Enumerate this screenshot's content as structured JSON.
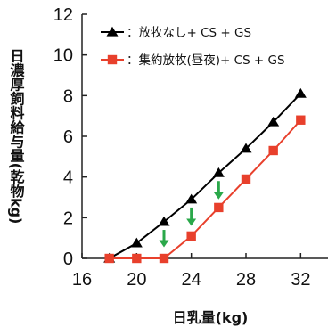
{
  "chart_data": {
    "type": "line",
    "xlabel": "日乳量(kg)",
    "ylabel": "日濃厚飼料給与量(乾物kg)",
    "xlim": [
      16,
      34
    ],
    "ylim": [
      0,
      12
    ],
    "xticks": [
      16,
      20,
      24,
      28,
      32
    ],
    "yticks": [
      0,
      2,
      4,
      6,
      8,
      10,
      12
    ],
    "grid": false,
    "legend_position": "top-right",
    "series": [
      {
        "name": "：放牧なし+ CS + GS",
        "color": "#000000",
        "marker": "triangle",
        "x": [
          18,
          20,
          22,
          24,
          26,
          28,
          30,
          32
        ],
        "y": [
          0,
          0.75,
          1.8,
          2.9,
          4.2,
          5.4,
          6.7,
          8.1
        ]
      },
      {
        "name": "：集約放牧(昼夜)+ CS + GS",
        "color": "#e8402c",
        "marker": "square",
        "x": [
          18,
          20,
          22,
          24,
          26,
          28,
          30,
          32
        ],
        "y": [
          0,
          0,
          0,
          1.1,
          2.5,
          3.9,
          5.3,
          6.8
        ]
      }
    ],
    "annotations": [
      {
        "type": "down-arrow",
        "color": "#2aa84a",
        "x": 22,
        "y_from": 1.4,
        "y_to": 0.55
      },
      {
        "type": "down-arrow",
        "color": "#2aa84a",
        "x": 24,
        "y_from": 2.5,
        "y_to": 1.6
      },
      {
        "type": "down-arrow",
        "color": "#2aa84a",
        "x": 26,
        "y_from": 3.8,
        "y_to": 2.9
      }
    ]
  }
}
